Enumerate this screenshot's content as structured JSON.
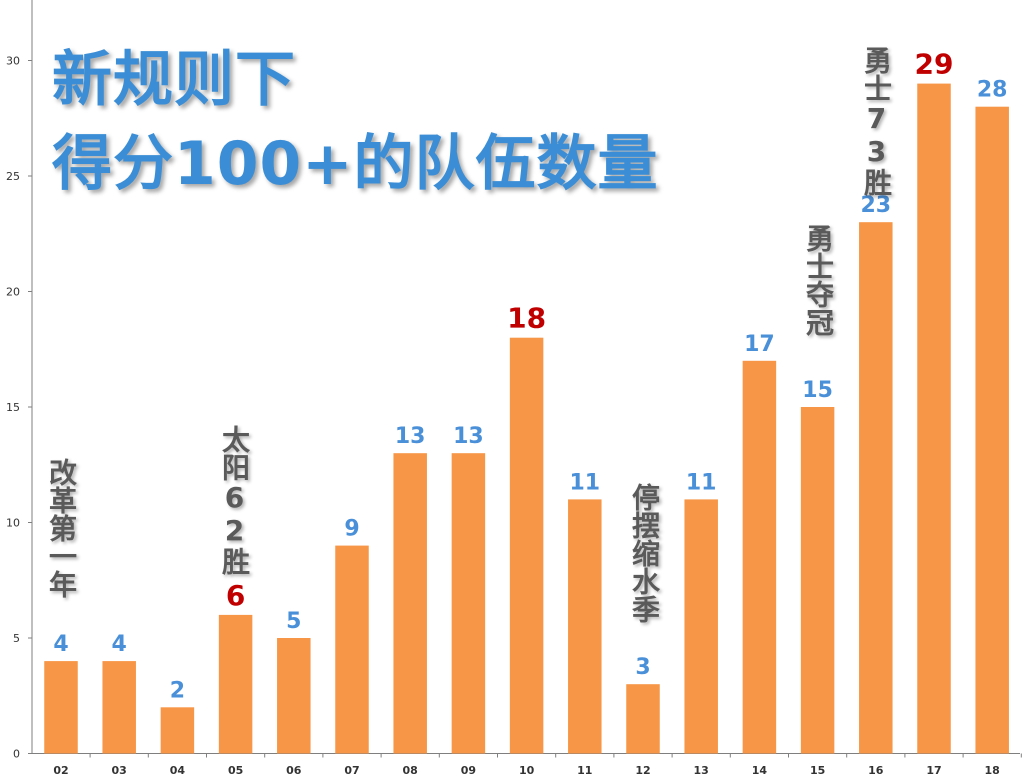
{
  "chart_data": {
    "type": "bar",
    "title_lines": [
      "新规则下",
      "得分100+的队伍数量"
    ],
    "categories": [
      "02",
      "03",
      "04",
      "05",
      "06",
      "07",
      "08",
      "09",
      "10",
      "11",
      "12",
      "13",
      "14",
      "15",
      "16",
      "17",
      "18"
    ],
    "values": [
      4,
      4,
      2,
      6,
      5,
      9,
      13,
      13,
      18,
      11,
      3,
      11,
      17,
      15,
      23,
      29,
      28
    ],
    "highlighted_categories": [
      "05",
      "10",
      "17"
    ],
    "y_ticks": [
      "0",
      "5",
      "10",
      "15",
      "20",
      "25",
      "30"
    ],
    "ylim": [
      0,
      32.5
    ],
    "grid": false,
    "legend": "none",
    "annotations": [
      {
        "category": "02",
        "text": "改革第一年"
      },
      {
        "category": "05",
        "text": "太阳62胜"
      },
      {
        "category": "12",
        "text": "停摆缩水季"
      },
      {
        "category": "15",
        "text": "勇士夺冠"
      },
      {
        "category": "16",
        "text": "勇士73胜"
      }
    ],
    "colors": {
      "bar": "#f79646",
      "label": "#4a90d9",
      "label_highlight": "#c00000",
      "title": "#3b8ed6",
      "annotation": "#5a5a5a",
      "axis": "#7f7f7f",
      "tick_text": "#333333"
    }
  }
}
